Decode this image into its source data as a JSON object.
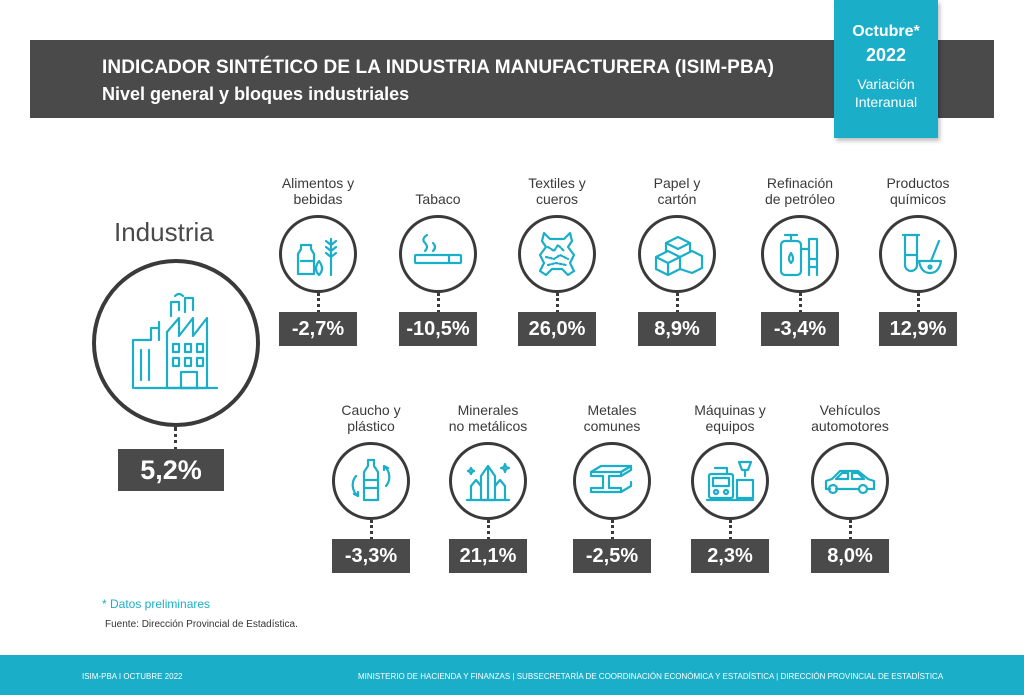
{
  "header": {
    "title": "INDICADOR SINTÉTICO DE LA INDUSTRIA MANUFACTURERA (ISIM-PBA)",
    "subtitle": "Nivel general y bloques industriales"
  },
  "badge": {
    "month": "Octubre*",
    "year": "2022",
    "line1": "Variación",
    "line2": "Interanual"
  },
  "industry": {
    "label": "Industria",
    "value": "5,2%",
    "icon": "factory-icon"
  },
  "blocks_row1": [
    {
      "l1": "Alimentos y",
      "l2": "bebidas",
      "value": "-2,7%",
      "icon": "food-drinks-icon"
    },
    {
      "l1": "",
      "l2": "Tabaco",
      "value": "-10,5%",
      "icon": "cigarette-icon"
    },
    {
      "l1": "Textiles y",
      "l2": "cueros",
      "value": "26,0%",
      "icon": "leather-hide-icon"
    },
    {
      "l1": "Papel y",
      "l2": "cartón",
      "value": "8,9%",
      "icon": "boxes-icon"
    },
    {
      "l1": "Refinación",
      "l2": "de petróleo",
      "value": "-3,4%",
      "icon": "refinery-icon"
    },
    {
      "l1": "Productos",
      "l2": "químicos",
      "value": "12,9%",
      "icon": "chemicals-icon"
    }
  ],
  "blocks_row2": [
    {
      "l1": "Caucho y",
      "l2": "plástico",
      "value": "-3,3%",
      "icon": "plastic-bottle-icon"
    },
    {
      "l1": "Minerales",
      "l2": "no metálicos",
      "value": "21,1%",
      "icon": "crystals-icon"
    },
    {
      "l1": "Metales",
      "l2": "comunes",
      "value": "-2,5%",
      "icon": "steel-beam-icon"
    },
    {
      "l1": "Máquinas y",
      "l2": "equipos",
      "value": "2,3%",
      "icon": "machine-icon"
    },
    {
      "l1": "Vehículos",
      "l2": "automotores",
      "value": "8,0%",
      "icon": "car-icon"
    }
  ],
  "note": "* Datos preliminares",
  "source": "Fuente: Dirección Provincial de Estadística.",
  "footer": {
    "left": "ISIM-PBA I OCTUBRE 2022",
    "right": "MINISTERIO DE HACIENDA Y FINANZAS | SUBSECRETARÍA DE COORDINACIÓN ECONÓMICA Y ESTADÍSTICA | DIRECCIÓN PROVINCIAL DE ESTADÍSTICA"
  },
  "colors": {
    "accent": "#1aaec8",
    "dark": "#4a4a4a"
  }
}
